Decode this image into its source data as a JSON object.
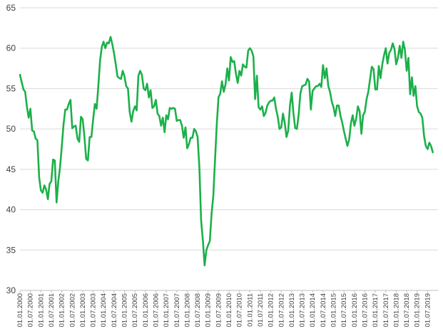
{
  "chart_data": {
    "type": "line",
    "title": "",
    "xlabel": "",
    "ylabel": "",
    "ylim": [
      30,
      65
    ],
    "yticks": [
      30,
      35,
      40,
      45,
      50,
      55,
      60,
      65
    ],
    "grid": true,
    "legend": "none",
    "line_color": "#1cb04a",
    "xtick_labels": [
      "01.01.2000",
      "01.07.2000",
      "01.01.2001",
      "01.07.2001",
      "01.01.2002",
      "01.07.2002",
      "01.01.2003",
      "01.07.2003",
      "01.01.2004",
      "01.07.2004",
      "01.01.2005",
      "01.07.2005",
      "01.01.2006",
      "01.07.2006",
      "01.01.2007",
      "01.07.2007",
      "01.01.2008",
      "01.07.2008",
      "01.01.2009",
      "01.07.2009",
      "01.01.2010",
      "01.07.2010",
      "01.01.2011",
      "01.07.2011",
      "01.01.2012",
      "01.07.2012",
      "01.01.2013",
      "01.07.2013",
      "01.01.2014",
      "01.07.2014",
      "01.01.2015",
      "01.07.2015",
      "01.01.2016",
      "01.07.2016",
      "01.01.2017",
      "01.07.2017",
      "01.01.2018",
      "01.07.2018",
      "01.01.2019",
      "01.07.2019"
    ],
    "series": [
      {
        "name": "",
        "x_start": "2000-01",
        "frequency": "monthly",
        "values": [
          56.7,
          55.8,
          54.9,
          54.6,
          52.7,
          51.4,
          52.5,
          49.8,
          49.7,
          48.8,
          48.6,
          44.0,
          42.4,
          42.1,
          43.0,
          42.5,
          41.3,
          43.2,
          43.5,
          46.2,
          46.1,
          40.9,
          43.5,
          45.3,
          47.8,
          50.5,
          52.4,
          52.4,
          53.1,
          53.6,
          50.1,
          50.3,
          50.4,
          48.8,
          48.4,
          51.5,
          51.2,
          49.1,
          46.3,
          46.1,
          49.0,
          49.0,
          51.2,
          53.1,
          52.5,
          55.4,
          58.5,
          60.2,
          60.8,
          60.0,
          60.7,
          60.6,
          61.4,
          60.5,
          59.4,
          58.0,
          56.5,
          56.3,
          56.2,
          57.2,
          56.5,
          55.3,
          55.0,
          52.1,
          50.9,
          52.2,
          52.8,
          52.3,
          56.6,
          57.2,
          56.7,
          55.0,
          54.8,
          55.6,
          53.9,
          54.8,
          52.6,
          52.8,
          53.6,
          51.9,
          51.6,
          50.4,
          51.4,
          49.6,
          51.7,
          51.2,
          52.6,
          52.5,
          52.6,
          52.5,
          51.0,
          51.1,
          51.1,
          50.4,
          48.9,
          50.2,
          47.6,
          48.1,
          48.9,
          48.9,
          50.0,
          49.7,
          49.0,
          45.2,
          38.7,
          36.2,
          33.1,
          35.0,
          35.6,
          36.1,
          39.5,
          41.7,
          46.3,
          50.6,
          53.9,
          54.4,
          55.9,
          54.6,
          55.5,
          57.5,
          56.0,
          58.9,
          58.3,
          58.4,
          56.8,
          55.7,
          57.2,
          56.6,
          58.0,
          57.7,
          57.6,
          59.7,
          60.0,
          59.7,
          59.0,
          53.7,
          56.6,
          52.7,
          52.4,
          52.8,
          51.6,
          52.0,
          52.9,
          53.3,
          53.5,
          53.5,
          53.9,
          52.5,
          51.5,
          50.0,
          50.2,
          51.9,
          50.8,
          49.0,
          49.8,
          52.9,
          54.5,
          52.0,
          50.1,
          50.0,
          51.8,
          54.4,
          55.3,
          55.4,
          55.5,
          56.2,
          55.9,
          52.4,
          54.7,
          55.0,
          55.3,
          55.3,
          55.6,
          55.2,
          57.9,
          56.3,
          57.5,
          55.3,
          54.6,
          53.4,
          52.7,
          51.6,
          52.9,
          52.9,
          51.6,
          50.8,
          49.7,
          48.8,
          47.9,
          48.7,
          50.7,
          51.7,
          50.4,
          51.2,
          52.8,
          52.2,
          49.4,
          51.7,
          52.1,
          53.7,
          54.6,
          56.2,
          57.7,
          57.4,
          54.9,
          54.9,
          57.8,
          56.3,
          58.0,
          59.1,
          60.0,
          58.1,
          59.4,
          59.8,
          60.6,
          59.9,
          58.0,
          58.8,
          60.3,
          58.8,
          60.8,
          59.8,
          57.2,
          58.8,
          54.3,
          56.4,
          54.1,
          55.3,
          52.8,
          52.1,
          51.9,
          51.4,
          49.1,
          47.9,
          47.5,
          48.3,
          47.9,
          47.1
        ]
      }
    ]
  }
}
